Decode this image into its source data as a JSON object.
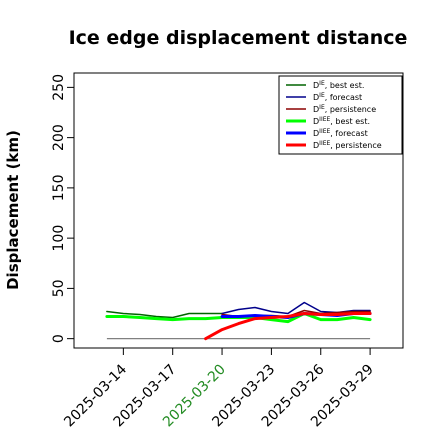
{
  "chart_data": {
    "type": "line",
    "title": "Ice edge displacement distance",
    "ylabel": "Displacement (km)",
    "xlabel": "",
    "x_ticks": [
      "2025-03-14",
      "2025-03-17",
      "2025-03-20",
      "2025-03-23",
      "2025-03-26",
      "2025-03-29"
    ],
    "x_tick_colors": [
      "#000000",
      "#000000",
      "#228b22",
      "#000000",
      "#000000",
      "#000000"
    ],
    "x_range": [
      "2025-03-11",
      "2025-03-31"
    ],
    "y_ticks": [
      0,
      50,
      100,
      150,
      200,
      250
    ],
    "ylim": [
      0,
      260
    ],
    "legend_position": "top-right",
    "series": [
      {
        "name": "best est.",
        "legend_main": "D",
        "legend_sup": "IE",
        "color": "#006400",
        "width": 1.5,
        "x": [
          "2025-03-13",
          "2025-03-14",
          "2025-03-15",
          "2025-03-16",
          "2025-03-17",
          "2025-03-18",
          "2025-03-19",
          "2025-03-20"
        ],
        "values": [
          27,
          25,
          24,
          22,
          21,
          25,
          25,
          25
        ]
      },
      {
        "name": "forecast",
        "legend_main": "D",
        "legend_sup": "IE",
        "color": "#00008b",
        "width": 1.5,
        "x": [
          "2025-03-20",
          "2025-03-21",
          "2025-03-22",
          "2025-03-23",
          "2025-03-24",
          "2025-03-25",
          "2025-03-26",
          "2025-03-27",
          "2025-03-28",
          "2025-03-29"
        ],
        "values": [
          25,
          29,
          31,
          27,
          25,
          36,
          27,
          26,
          28,
          28
        ]
      },
      {
        "name": "persistence",
        "legend_main": "D",
        "legend_sup": "IE",
        "color": "#8b0000",
        "width": 1.5,
        "x": [
          "2025-03-20",
          "2025-03-21",
          "2025-03-22",
          "2025-03-23",
          "2025-03-24",
          "2025-03-25",
          "2025-03-26",
          "2025-03-27",
          "2025-03-28",
          "2025-03-29"
        ],
        "values": [
          24,
          22,
          23,
          23,
          22,
          28,
          25,
          26,
          27,
          27
        ]
      },
      {
        "name": "best est.",
        "legend_main": "D",
        "legend_sup": "IIEE",
        "color": "#00ff00",
        "width": 3,
        "x": [
          "2025-03-13",
          "2025-03-14",
          "2025-03-15",
          "2025-03-16",
          "2025-03-17",
          "2025-03-18",
          "2025-03-19",
          "2025-03-20",
          "2025-03-21",
          "2025-03-22",
          "2025-03-23",
          "2025-03-24",
          "2025-03-25",
          "2025-03-26",
          "2025-03-27",
          "2025-03-28",
          "2025-03-29"
        ],
        "values": [
          22,
          22,
          21,
          20,
          19,
          20,
          20,
          21,
          21,
          21,
          19,
          17,
          25,
          19,
          19,
          21,
          19
        ]
      },
      {
        "name": "forecast",
        "legend_main": "D",
        "legend_sup": "IIEE",
        "color": "#0000ff",
        "width": 3,
        "x": [
          "2025-03-20",
          "2025-03-21",
          "2025-03-22",
          "2025-03-23",
          "2025-03-24",
          "2025-03-25",
          "2025-03-26",
          "2025-03-27",
          "2025-03-28",
          "2025-03-29"
        ],
        "values": [
          22,
          22,
          23,
          22,
          21,
          25,
          24,
          23,
          25,
          25
        ]
      },
      {
        "name": "persistence",
        "legend_main": "D",
        "legend_sup": "IIEE",
        "color": "#ff0000",
        "width": 3,
        "x": [
          "2025-03-19",
          "2025-03-20",
          "2025-03-21",
          "2025-03-22",
          "2025-03-23",
          "2025-03-24",
          "2025-03-25",
          "2025-03-26",
          "2025-03-27",
          "2025-03-28",
          "2025-03-29"
        ],
        "values": [
          0,
          9,
          15,
          20,
          21,
          22,
          25,
          24,
          24,
          25,
          25
        ]
      }
    ],
    "baseline": {
      "value": 0,
      "color": "#808080",
      "x": [
        "2025-03-13",
        "2025-03-29"
      ]
    },
    "grid": false
  }
}
